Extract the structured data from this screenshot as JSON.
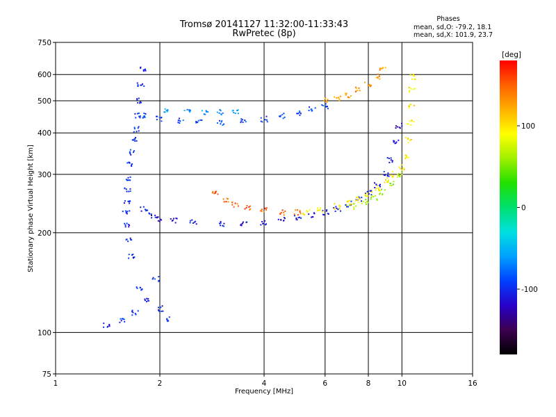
{
  "chart_data": {
    "type": "scatter",
    "title": "Tromsø 20141127 11:32:00-11:33:43",
    "subtitle": "RwPretec (8p)",
    "xlabel": "Frequency [MHz]",
    "ylabel": "Stationary phase Virtual Height [km]",
    "x_scale": "log",
    "y_scale": "log",
    "xlim": [
      1,
      16
    ],
    "ylim": [
      75,
      750
    ],
    "x_ticks": [
      1,
      2,
      4,
      6,
      8,
      10,
      16
    ],
    "x_tick_labels": [
      "1",
      "2",
      "4",
      "6",
      "8",
      "10",
      "16"
    ],
    "y_ticks": [
      75,
      100,
      200,
      300,
      400,
      500,
      600,
      750
    ],
    "y_tick_labels": [
      "75",
      "100",
      "200",
      "300",
      "400",
      "500",
      "600",
      "750"
    ],
    "grid": true,
    "phase_info": {
      "title": "Phases",
      "line_o": "mean, sd,O: -79.2, 18.1",
      "line_x": "mean, sd,X: 101.9, 23.7"
    },
    "colorbar": {
      "label": "[deg]",
      "tick_values": [
        100,
        0,
        -100
      ],
      "tick_labels": [
        "100",
        "0",
        "-100"
      ],
      "range": [
        -180,
        180
      ],
      "colors": [
        "#000000",
        "#3c0050",
        "#2800c8",
        "#0040ff",
        "#00a0ff",
        "#00e0e0",
        "#00e070",
        "#20e000",
        "#a0f000",
        "#ffff00",
        "#ffb000",
        "#ff6000",
        "#ff0000"
      ]
    },
    "traces": [
      {
        "phase": -100,
        "points": [
          [
            1.65,
            170
          ],
          [
            1.62,
            190
          ],
          [
            1.6,
            210
          ],
          [
            1.6,
            230
          ],
          [
            1.61,
            250
          ],
          [
            1.62,
            270
          ],
          [
            1.63,
            290
          ],
          [
            1.64,
            320
          ],
          [
            1.66,
            350
          ],
          [
            1.68,
            380
          ],
          [
            1.7,
            410
          ],
          [
            1.72,
            450
          ],
          [
            1.74,
            500
          ],
          [
            1.76,
            560
          ],
          [
            1.78,
            620
          ]
        ]
      },
      {
        "phase": -110,
        "points": [
          [
            1.8,
            235
          ],
          [
            1.9,
            225
          ],
          [
            2.0,
            220
          ],
          [
            2.2,
            217
          ],
          [
            2.5,
            215
          ],
          [
            3.0,
            213
          ],
          [
            3.5,
            213
          ],
          [
            4.0,
            215
          ],
          [
            4.5,
            218
          ],
          [
            5.0,
            222
          ],
          [
            5.5,
            226
          ],
          [
            6.0,
            230
          ],
          [
            6.5,
            236
          ],
          [
            7.0,
            244
          ],
          [
            7.5,
            253
          ],
          [
            8.0,
            263
          ],
          [
            8.5,
            278
          ],
          [
            9.0,
            300
          ],
          [
            9.3,
            330
          ],
          [
            9.6,
            375
          ],
          [
            9.8,
            420
          ]
        ]
      },
      {
        "phase": -90,
        "points": [
          [
            1.8,
            450
          ],
          [
            2.0,
            440
          ],
          [
            2.3,
            435
          ],
          [
            2.6,
            432
          ],
          [
            3.0,
            430
          ],
          [
            3.5,
            435
          ],
          [
            4.0,
            440
          ],
          [
            4.5,
            450
          ],
          [
            5.0,
            460
          ],
          [
            5.5,
            470
          ],
          [
            6.0,
            480
          ]
        ]
      },
      {
        "phase": -60,
        "points": [
          [
            2.1,
            470
          ],
          [
            2.4,
            465
          ],
          [
            2.7,
            462
          ],
          [
            3.0,
            462
          ],
          [
            3.3,
            465
          ]
        ]
      },
      {
        "phase": 150,
        "points": [
          [
            2.9,
            265
          ],
          [
            3.1,
            252
          ],
          [
            3.3,
            243
          ],
          [
            3.6,
            237
          ],
          [
            4.0,
            233
          ],
          [
            4.5,
            230
          ],
          [
            5.0,
            230
          ]
        ]
      },
      {
        "phase": 95,
        "points": [
          [
            5.3,
            230
          ],
          [
            5.8,
            233
          ],
          [
            6.5,
            240
          ],
          [
            7.0,
            246
          ],
          [
            7.5,
            252
          ],
          [
            8.0,
            262
          ],
          [
            8.5,
            272
          ],
          [
            9.0,
            287
          ],
          [
            9.5,
            300
          ],
          [
            10.0,
            315
          ],
          [
            10.3,
            340
          ],
          [
            10.5,
            380
          ],
          [
            10.6,
            430
          ],
          [
            10.65,
            480
          ],
          [
            10.7,
            540
          ],
          [
            10.75,
            590
          ]
        ]
      },
      {
        "phase": 60,
        "points": [
          [
            7.2,
            240
          ],
          [
            7.8,
            248
          ],
          [
            8.3,
            255
          ],
          [
            8.8,
            265
          ],
          [
            9.3,
            280
          ],
          [
            9.8,
            300
          ]
        ]
      },
      {
        "phase": -100,
        "points": [
          [
            1.4,
            105
          ],
          [
            1.55,
            108
          ],
          [
            1.7,
            115
          ],
          [
            1.85,
            125
          ],
          [
            2.0,
            118
          ],
          [
            2.1,
            110
          ],
          [
            1.75,
            135
          ],
          [
            1.95,
            145
          ]
        ]
      },
      {
        "phase": 130,
        "points": [
          [
            6.0,
            500
          ],
          [
            6.5,
            510
          ],
          [
            7.0,
            520
          ],
          [
            7.5,
            540
          ],
          [
            8.0,
            560
          ],
          [
            8.5,
            590
          ],
          [
            8.8,
            620
          ]
        ]
      }
    ]
  }
}
